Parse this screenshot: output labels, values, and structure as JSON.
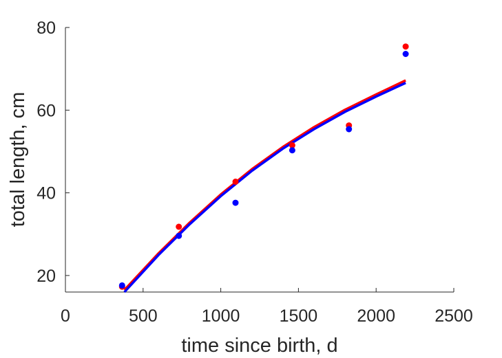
{
  "chart_data": {
    "type": "scatter",
    "title": "",
    "xlabel": "time since birth, d",
    "ylabel": "total length, cm",
    "xlim": [
      0,
      2500
    ],
    "ylim": [
      16,
      80
    ],
    "xticks": [
      0,
      500,
      1000,
      1500,
      2000,
      2500
    ],
    "yticks": [
      20,
      40,
      60,
      80
    ],
    "grid": false,
    "series": [
      {
        "color": "#ff0000",
        "points": {
          "x": [
            365,
            730,
            1095,
            1460,
            1825,
            2190
          ],
          "y": [
            17.3,
            31.8,
            42.7,
            51.5,
            56.3,
            75.4
          ]
        },
        "curve": {
          "x": [
            380,
            600,
            800,
            1000,
            1200,
            1400,
            1600,
            1800,
            2000,
            2190
          ],
          "y": [
            16.5,
            25.4,
            32.8,
            39.6,
            45.7,
            51.1,
            55.9,
            60.1,
            63.8,
            67.2
          ]
        }
      },
      {
        "color": "#0000ff",
        "points": {
          "x": [
            365,
            730,
            1095,
            1460,
            1825,
            2190
          ],
          "y": [
            17.6,
            29.6,
            37.6,
            50.3,
            55.4,
            73.6
          ]
        },
        "curve": {
          "x": [
            380,
            600,
            800,
            1000,
            1200,
            1400,
            1600,
            1800,
            2000,
            2190
          ],
          "y": [
            16.0,
            25.0,
            32.4,
            39.2,
            45.3,
            50.7,
            55.4,
            59.6,
            63.3,
            66.6
          ]
        }
      }
    ]
  }
}
